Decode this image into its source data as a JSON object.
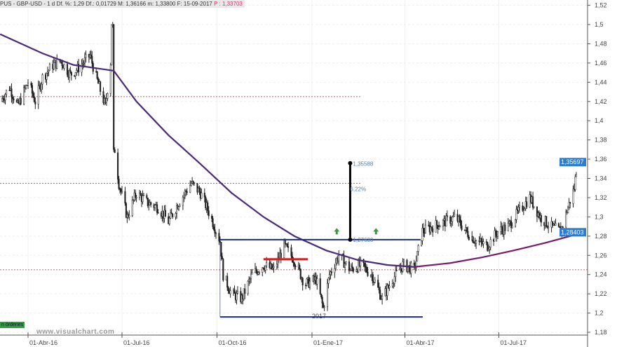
{
  "header": {
    "symbol": "PUS - GBP-USD - 1 d",
    "stats": "Df. %: 1,29  Df.: 0,01729  M: 1,36166  m: 1,33800  F: 15-09-2017",
    "last_label": "P : 1,33703"
  },
  "watermark": "www.visualchart.com",
  "orders_badge": "n órdenes",
  "year_label": "2017",
  "colors": {
    "price": "#222222",
    "moving_average": "#4b2a7a",
    "ma_recent": "#7a1a6a",
    "channel": "#1e2c8c",
    "marker": "#d42020",
    "measure": "#000000",
    "arrow": "#3a9a3a",
    "price_tag": "#2a7fd4"
  },
  "chart_data": {
    "type": "bar",
    "subtype": "ohlc",
    "ylim": [
      1.18,
      1.52
    ],
    "grid": true,
    "y_ticks": [
      "1,18",
      "1,2",
      "1,22",
      "1,24",
      "1,26",
      "1,28",
      "1,3",
      "1,32",
      "1,34",
      "1,36",
      "1,38",
      "1,4",
      "1,42",
      "1,44",
      "1,46",
      "1,48",
      "1,5",
      "1,52"
    ],
    "x_ticks": [
      {
        "date": "2016-04-01",
        "label": "01-Abr-16"
      },
      {
        "date": "2016-07-01",
        "label": "01-Jul-16"
      },
      {
        "date": "2016-10-01",
        "label": "01-Oct-16"
      },
      {
        "date": "2017-01-01",
        "label": "01-Ene-17"
      },
      {
        "date": "2017-04-01",
        "label": "01-Abr-17"
      },
      {
        "date": "2017-07-01",
        "label": "01-Jul-17"
      }
    ],
    "close": [
      [
        "2016-03-05",
        1.42
      ],
      [
        "2016-03-14",
        1.435
      ],
      [
        "2016-03-22",
        1.415
      ],
      [
        "2016-04-01",
        1.44
      ],
      [
        "2016-04-08",
        1.42
      ],
      [
        "2016-04-15",
        1.445
      ],
      [
        "2016-04-25",
        1.458
      ],
      [
        "2016-05-03",
        1.462
      ],
      [
        "2016-05-12",
        1.448
      ],
      [
        "2016-05-20",
        1.455
      ],
      [
        "2016-05-31",
        1.468
      ],
      [
        "2016-06-06",
        1.445
      ],
      [
        "2016-06-15",
        1.415
      ],
      [
        "2016-06-21",
        1.47
      ],
      [
        "2016-06-23",
        1.5
      ],
      [
        "2016-06-24",
        1.37
      ],
      [
        "2016-06-28",
        1.335
      ],
      [
        "2016-07-06",
        1.3
      ],
      [
        "2016-07-15",
        1.325
      ],
      [
        "2016-07-25",
        1.315
      ],
      [
        "2016-08-05",
        1.31
      ],
      [
        "2016-08-15",
        1.295
      ],
      [
        "2016-08-25",
        1.315
      ],
      [
        "2016-09-06",
        1.335
      ],
      [
        "2016-09-15",
        1.325
      ],
      [
        "2016-09-25",
        1.3
      ],
      [
        "2016-10-04",
        1.275
      ],
      [
        "2016-10-07",
        1.24
      ],
      [
        "2016-10-15",
        1.22
      ],
      [
        "2016-10-25",
        1.215
      ],
      [
        "2016-11-04",
        1.24
      ],
      [
        "2016-11-15",
        1.25
      ],
      [
        "2016-11-25",
        1.245
      ],
      [
        "2016-12-05",
        1.27
      ],
      [
        "2016-12-15",
        1.255
      ],
      [
        "2016-12-25",
        1.23
      ],
      [
        "2017-01-05",
        1.235
      ],
      [
        "2017-01-12",
        1.205
      ],
      [
        "2017-01-18",
        1.24
      ],
      [
        "2017-01-27",
        1.26
      ],
      [
        "2017-02-07",
        1.245
      ],
      [
        "2017-02-17",
        1.25
      ],
      [
        "2017-02-28",
        1.24
      ],
      [
        "2017-03-10",
        1.215
      ],
      [
        "2017-03-20",
        1.235
      ],
      [
        "2017-03-30",
        1.25
      ],
      [
        "2017-04-10",
        1.245
      ],
      [
        "2017-04-18",
        1.285
      ],
      [
        "2017-04-28",
        1.29
      ],
      [
        "2017-05-10",
        1.295
      ],
      [
        "2017-05-20",
        1.3
      ],
      [
        "2017-05-30",
        1.285
      ],
      [
        "2017-06-09",
        1.275
      ],
      [
        "2017-06-20",
        1.27
      ],
      [
        "2017-06-30",
        1.285
      ],
      [
        "2017-07-10",
        1.29
      ],
      [
        "2017-07-20",
        1.305
      ],
      [
        "2017-07-31",
        1.32
      ],
      [
        "2017-08-10",
        1.3
      ],
      [
        "2017-08-20",
        1.29
      ],
      [
        "2017-08-30",
        1.285
      ],
      [
        "2017-09-06",
        1.31
      ],
      [
        "2017-09-12",
        1.33
      ],
      [
        "2017-09-15",
        1.358
      ]
    ],
    "moving_average": [
      [
        "2016-03-05",
        1.49
      ],
      [
        "2016-04-15",
        1.47
      ],
      [
        "2016-05-15",
        1.458
      ],
      [
        "2016-06-23",
        1.452
      ],
      [
        "2016-07-15",
        1.42
      ],
      [
        "2016-08-15",
        1.385
      ],
      [
        "2016-09-15",
        1.355
      ],
      [
        "2016-10-15",
        1.325
      ],
      [
        "2016-11-15",
        1.3
      ],
      [
        "2016-12-15",
        1.28
      ],
      [
        "2017-01-15",
        1.265
      ],
      [
        "2017-02-15",
        1.255
      ],
      [
        "2017-03-15",
        1.25
      ],
      [
        "2017-04-10",
        1.248
      ],
      [
        "2017-05-15",
        1.252
      ],
      [
        "2017-06-15",
        1.258
      ],
      [
        "2017-07-15",
        1.265
      ],
      [
        "2017-08-15",
        1.273
      ],
      [
        "2017-09-15",
        1.282
      ]
    ],
    "reference_lines": [
      {
        "value": 1.425,
        "style": "dotted"
      },
      {
        "value": 1.335,
        "style": "dotted"
      },
      {
        "value": 1.245,
        "style": "dotted"
      }
    ],
    "channel": {
      "upper": 1.2763,
      "lower": 1.196,
      "from": "2016-10-04",
      "to": "2017-04-18"
    },
    "marker_line": {
      "value": 1.256,
      "from": "2016-11-15",
      "to": "2016-12-28"
    },
    "measure": {
      "date": "2017-02-07",
      "from": 1.2763,
      "to": 1.35588,
      "from_label": "1,27630",
      "to_label": "1,35588",
      "pct_label": "6,22%"
    },
    "arrows": [
      {
        "date": "2017-01-25",
        "value": 1.284
      },
      {
        "date": "2017-03-04",
        "value": 1.284
      }
    ],
    "price_tags": [
      {
        "value": 1.35697,
        "label": "1,35697"
      },
      {
        "value": 1.28403,
        "label": "1,28403"
      }
    ]
  }
}
